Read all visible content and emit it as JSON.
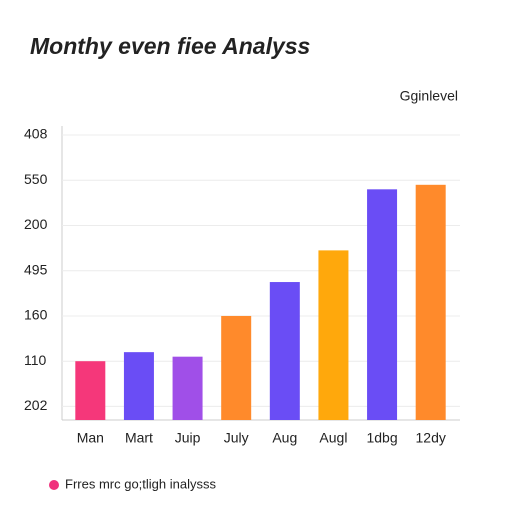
{
  "chart_data": {
    "type": "bar",
    "title": "Monthy even fiee Analyss",
    "subtitle": "Gginlevel",
    "categories": [
      "Man",
      "Mart",
      "Juip",
      "July",
      "Aug",
      "Augl",
      "1dbg",
      "12dy"
    ],
    "values": [
      1.0,
      1.2,
      1.1,
      2.0,
      2.75,
      3.45,
      4.8,
      4.9
    ],
    "colors": [
      "#f5377a",
      "#6a4df5",
      "#a04fe8",
      "#ff8a2b",
      "#6a4df5",
      "#ffa80c",
      "#6a4df5",
      "#ff8a2b"
    ],
    "ylim": [
      -0.3,
      6.2
    ],
    "yticks": [
      {
        "value": 0,
        "label": "202"
      },
      {
        "value": 1,
        "label": "110"
      },
      {
        "value": 2,
        "label": "160"
      },
      {
        "value": 3,
        "label": "495"
      },
      {
        "value": 4,
        "label": "200"
      },
      {
        "value": 5,
        "label": "550"
      },
      {
        "value": 6,
        "label": "408"
      }
    ],
    "grid": true,
    "legend": {
      "label": "Frres mrc go;tligh inalysss",
      "color": "#f0317d"
    }
  }
}
